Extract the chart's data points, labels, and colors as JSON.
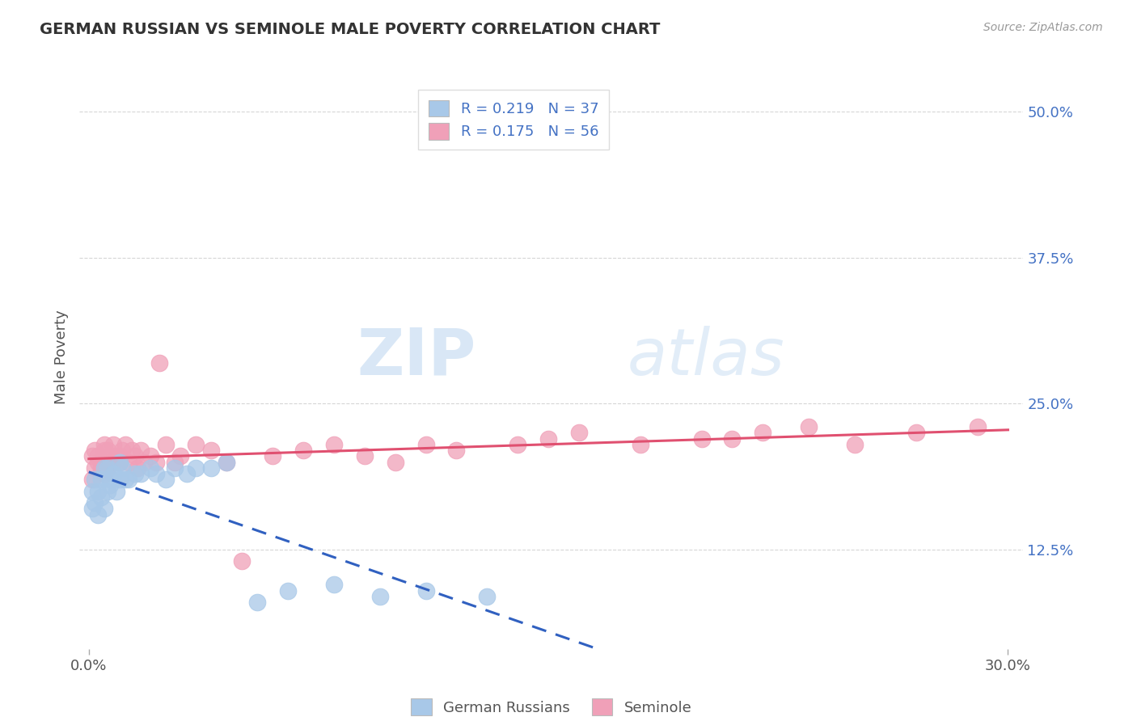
{
  "title": "GERMAN RUSSIAN VS SEMINOLE MALE POVERTY CORRELATION CHART",
  "source": "Source: ZipAtlas.com",
  "ylabel": "Male Poverty",
  "xlim": [
    -0.003,
    0.305
  ],
  "ylim": [
    0.04,
    0.54
  ],
  "xticks": [
    0.0,
    0.3
  ],
  "xticklabels": [
    "0.0%",
    "30.0%"
  ],
  "yticks": [
    0.125,
    0.25,
    0.375,
    0.5
  ],
  "yticklabels": [
    "12.5%",
    "25.0%",
    "37.5%",
    "50.0%"
  ],
  "german_russian_color": "#a8c8e8",
  "seminole_color": "#f0a0b8",
  "german_russian_line_color": "#3060c0",
  "seminole_line_color": "#e05070",
  "german_russian_R": 0.219,
  "german_russian_N": 37,
  "seminole_R": 0.175,
  "seminole_N": 56,
  "watermark_zip": "ZIP",
  "watermark_atlas": "atlas",
  "legend_label_1": "German Russians",
  "legend_label_2": "Seminole",
  "german_russian_x": [
    0.001,
    0.001,
    0.002,
    0.002,
    0.003,
    0.003,
    0.004,
    0.004,
    0.005,
    0.005,
    0.006,
    0.006,
    0.007,
    0.007,
    0.008,
    0.009,
    0.01,
    0.01,
    0.011,
    0.012,
    0.013,
    0.015,
    0.017,
    0.02,
    0.022,
    0.025,
    0.028,
    0.032,
    0.035,
    0.04,
    0.045,
    0.055,
    0.065,
    0.08,
    0.095,
    0.11,
    0.13
  ],
  "german_russian_y": [
    0.16,
    0.175,
    0.165,
    0.185,
    0.155,
    0.175,
    0.17,
    0.185,
    0.16,
    0.195,
    0.175,
    0.195,
    0.18,
    0.185,
    0.19,
    0.175,
    0.185,
    0.2,
    0.195,
    0.185,
    0.185,
    0.19,
    0.19,
    0.195,
    0.19,
    0.185,
    0.195,
    0.19,
    0.195,
    0.195,
    0.2,
    0.08,
    0.09,
    0.095,
    0.085,
    0.09,
    0.085
  ],
  "seminole_x": [
    0.001,
    0.001,
    0.002,
    0.002,
    0.003,
    0.003,
    0.004,
    0.004,
    0.005,
    0.005,
    0.005,
    0.006,
    0.006,
    0.007,
    0.007,
    0.008,
    0.008,
    0.009,
    0.01,
    0.01,
    0.011,
    0.012,
    0.013,
    0.014,
    0.015,
    0.016,
    0.017,
    0.018,
    0.02,
    0.022,
    0.023,
    0.025,
    0.028,
    0.03,
    0.035,
    0.04,
    0.045,
    0.05,
    0.06,
    0.07,
    0.08,
    0.09,
    0.1,
    0.11,
    0.12,
    0.14,
    0.15,
    0.16,
    0.18,
    0.2,
    0.21,
    0.22,
    0.235,
    0.25,
    0.27,
    0.29
  ],
  "seminole_y": [
    0.185,
    0.205,
    0.195,
    0.21,
    0.2,
    0.205,
    0.195,
    0.2,
    0.19,
    0.21,
    0.215,
    0.195,
    0.21,
    0.2,
    0.205,
    0.2,
    0.215,
    0.205,
    0.2,
    0.205,
    0.21,
    0.215,
    0.2,
    0.21,
    0.205,
    0.195,
    0.21,
    0.2,
    0.205,
    0.2,
    0.285,
    0.215,
    0.2,
    0.205,
    0.215,
    0.21,
    0.2,
    0.115,
    0.205,
    0.21,
    0.215,
    0.205,
    0.2,
    0.215,
    0.21,
    0.215,
    0.22,
    0.225,
    0.215,
    0.22,
    0.22,
    0.225,
    0.23,
    0.215,
    0.225,
    0.23
  ]
}
